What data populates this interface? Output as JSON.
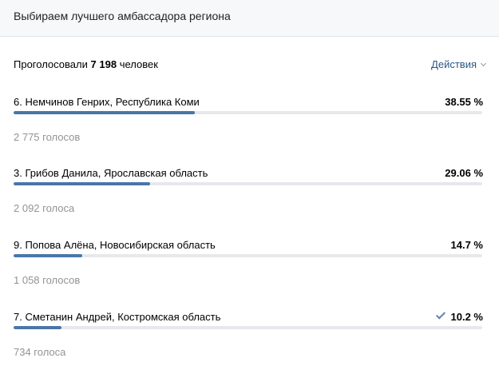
{
  "header": {
    "title": "Выбираем лучшего амбассадора региона"
  },
  "summary": {
    "prefix": "Проголосовали",
    "count": "7 198",
    "suffix": "человек",
    "actions_label": "Действия"
  },
  "options": [
    {
      "name": "6. Немчинов Генрих, Республика Коми",
      "percent_label": "38.55 %",
      "percent": 38.55,
      "votes": "2 775 голосов",
      "checked": false
    },
    {
      "name": "3. Грибов Данила, Ярославская область",
      "percent_label": "29.06 %",
      "percent": 29.06,
      "votes": "2 092 голоса",
      "checked": false
    },
    {
      "name": "9. Попова Алёна, Новосибирская область",
      "percent_label": "14.7 %",
      "percent": 14.7,
      "votes": "1 058 голосов",
      "checked": false
    },
    {
      "name": "7. Сметанин Андрей, Костромская область",
      "percent_label": "10.2 %",
      "percent": 10.2,
      "votes": "734 голоса",
      "checked": true
    }
  ],
  "colors": {
    "accent": "#4a76a8",
    "link": "#2a5885",
    "track": "#e7e8ec"
  }
}
